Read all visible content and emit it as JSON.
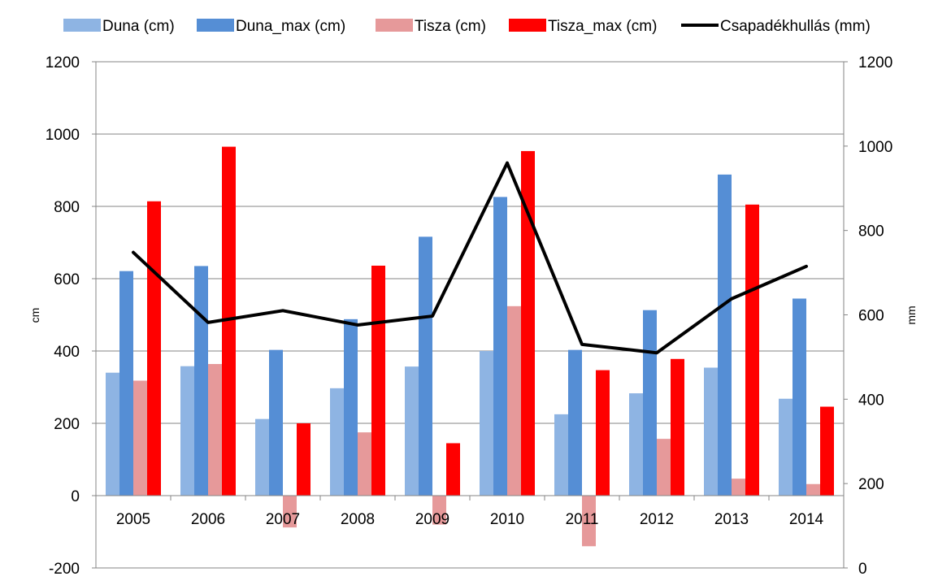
{
  "chart_data": {
    "type": "bar",
    "categories": [
      "2005",
      "2006",
      "2007",
      "2008",
      "2009",
      "2010",
      "2011",
      "2012",
      "2013",
      "2014"
    ],
    "series": [
      {
        "name": "Duna (cm)",
        "axis": "left",
        "color": "#8EB4E3",
        "values": [
          340,
          358,
          212,
          297,
          357,
          400,
          225,
          283,
          354,
          268
        ]
      },
      {
        "name": "Duna_max (cm)",
        "axis": "left",
        "color": "#558ED5",
        "values": [
          621,
          635,
          403,
          488,
          716,
          826,
          403,
          513,
          888,
          545
        ]
      },
      {
        "name": "Tisza (cm)",
        "axis": "left",
        "color": "#E6999A",
        "values": [
          318,
          364,
          -88,
          175,
          -80,
          524,
          -140,
          157,
          47,
          32
        ]
      },
      {
        "name": "Tisza_max (cm)",
        "axis": "left",
        "color": "#FF0000",
        "values": [
          814,
          965,
          200,
          636,
          145,
          953,
          347,
          378,
          805,
          246
        ]
      }
    ],
    "line_series": {
      "name": "Csapadékhullás (mm)",
      "axis": "right",
      "color": "#000000",
      "values": [
        748,
        582,
        610,
        576,
        597,
        960,
        530,
        510,
        638,
        715
      ]
    },
    "ylabel": "cm",
    "y2label": "mm",
    "ylim": [
      -200,
      1200
    ],
    "y2lim": [
      0,
      1200
    ],
    "yticks": [
      "-200",
      "0",
      "200",
      "400",
      "600",
      "800",
      "1000",
      "1200"
    ],
    "y2ticks": [
      "0",
      "200",
      "400",
      "600",
      "800",
      "1000",
      "1200"
    ],
    "grid": true,
    "legend_position": "top"
  }
}
